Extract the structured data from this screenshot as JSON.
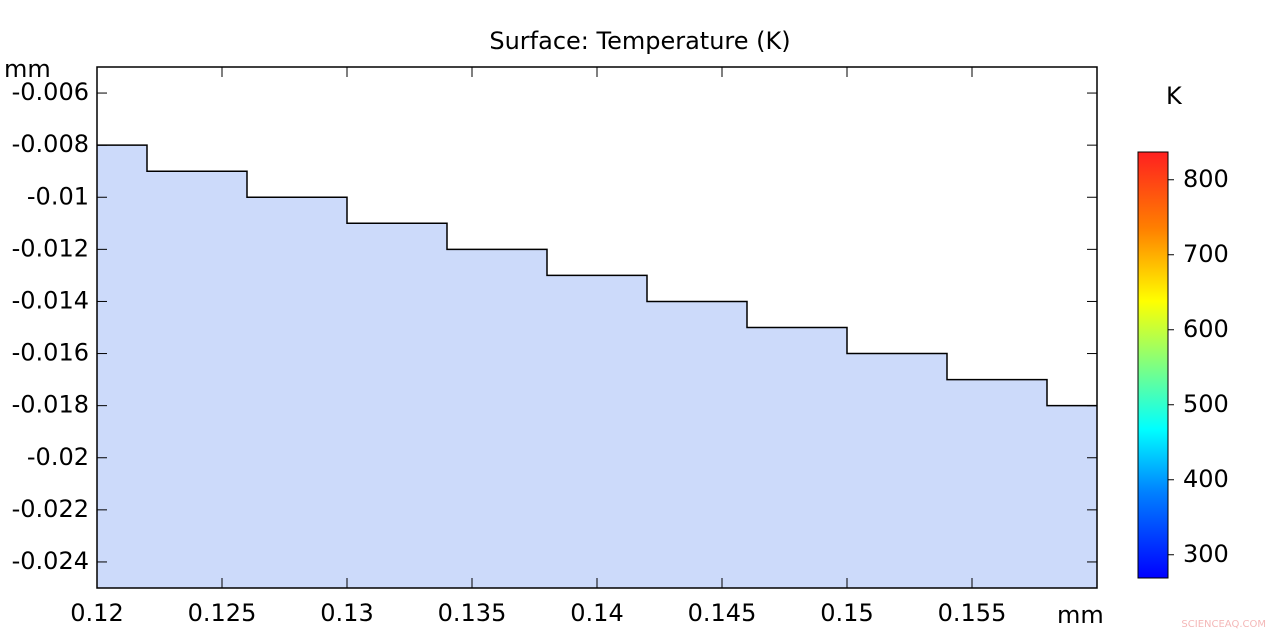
{
  "chart_data": {
    "type": "area",
    "title": "Surface: Temperature (K)",
    "x_unit": "mm",
    "y_unit": "mm",
    "colorbar_unit": "K",
    "x": [
      0.12,
      0.122,
      0.122,
      0.126,
      0.126,
      0.13,
      0.13,
      0.134,
      0.134,
      0.138,
      0.138,
      0.142,
      0.142,
      0.146,
      0.146,
      0.15,
      0.15,
      0.154,
      0.154,
      0.158,
      0.158,
      0.16
    ],
    "values": [
      -0.008,
      -0.008,
      -0.009,
      -0.009,
      -0.01,
      -0.01,
      -0.011,
      -0.011,
      -0.012,
      -0.012,
      -0.013,
      -0.013,
      -0.014,
      -0.014,
      -0.015,
      -0.015,
      -0.016,
      -0.016,
      -0.017,
      -0.017,
      -0.018,
      -0.018
    ],
    "fill_color": "#ccdafa",
    "line_color": "#000000",
    "xlim": [
      0.12,
      0.16
    ],
    "xticks": [
      0.12,
      0.125,
      0.13,
      0.135,
      0.14,
      0.145,
      0.15,
      0.155
    ],
    "ylim": [
      -0.025,
      -0.005
    ],
    "yticks": [
      -0.006,
      -0.008,
      -0.01,
      -0.012,
      -0.014,
      -0.016,
      -0.018,
      -0.02,
      -0.022,
      -0.024
    ],
    "clim": [
      269,
      837
    ],
    "cticks": [
      300,
      400,
      500,
      600,
      700,
      800
    ],
    "watermark": "SCIENCEAQ.COM"
  }
}
